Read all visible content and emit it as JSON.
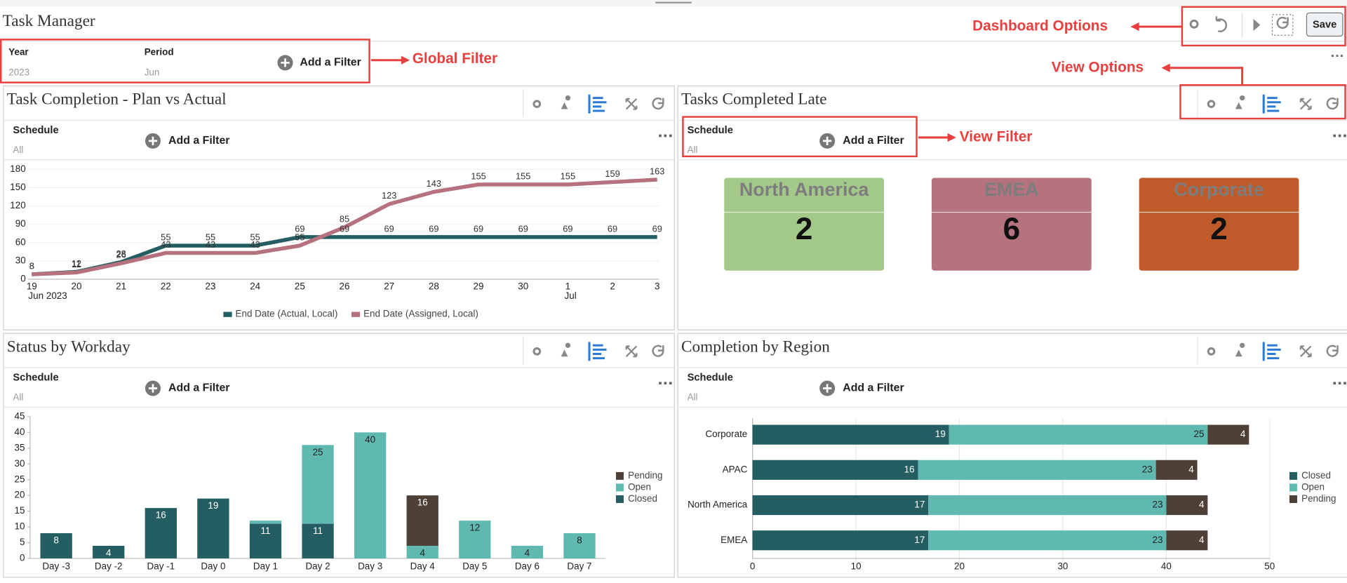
{
  "header": {
    "title": "Task Manager",
    "save": "Save"
  },
  "global_filter": {
    "fields": [
      {
        "label": "Year",
        "value": "2023"
      },
      {
        "label": "Period",
        "value": "Jun"
      }
    ],
    "add_filter": "Add a Filter"
  },
  "annotations": {
    "dashboard_options": "Dashboard Options",
    "global_filter": "Global Filter",
    "view_options": "View Options",
    "view_filter": "View Filter"
  },
  "panels": [
    {
      "filter_label": "Schedule",
      "filter_value": "All",
      "add_filter": "Add a Filter"
    },
    {
      "filter_label": "Schedule",
      "filter_value": "All",
      "add_filter": "Add a Filter"
    },
    {
      "filter_label": "Schedule",
      "filter_value": "All",
      "add_filter": "Add a Filter"
    },
    {
      "filter_label": "Schedule",
      "filter_value": "All",
      "add_filter": "Add a Filter"
    }
  ],
  "chart_data": [
    {
      "type": "line",
      "title": "Task Completion - Plan vs Actual",
      "categories": [
        "19",
        "20",
        "21",
        "22",
        "23",
        "24",
        "25",
        "26",
        "27",
        "28",
        "29",
        "30",
        "1",
        "2",
        "3"
      ],
      "category_groups": [
        "Jun 2023",
        null,
        null,
        null,
        null,
        null,
        null,
        null,
        null,
        null,
        null,
        null,
        "Jul",
        null,
        null
      ],
      "series": [
        {
          "name": "End Date (Actual, Local)",
          "color": "#245e62",
          "values": [
            8,
            12,
            28,
            55,
            55,
            55,
            69,
            69,
            69,
            69,
            69,
            69,
            69,
            69,
            69
          ]
        },
        {
          "name": "End Date (Assigned, Local)",
          "color": "#b5727e",
          "values": [
            8,
            11,
            26,
            43,
            43,
            43,
            55,
            85,
            123,
            143,
            155,
            155,
            155,
            159,
            163
          ]
        }
      ],
      "ylim": [
        0,
        180
      ],
      "yticks": [
        0,
        30,
        60,
        90,
        120,
        150,
        180
      ],
      "grid": true,
      "legend": "bottom"
    },
    {
      "type": "tiles",
      "title": "Tasks Completed Late",
      "categories": [
        "North America",
        "EMEA",
        "Corporate"
      ],
      "values": [
        2,
        6,
        2
      ],
      "colors": [
        "#a3c98a",
        "#b57380",
        "#bf5b2a"
      ]
    },
    {
      "type": "stacked_bar",
      "title": "Status by Workday",
      "categories": [
        "Day -3",
        "Day -2",
        "Day -1",
        "Day 0",
        "Day 1",
        "Day 2",
        "Day 3",
        "Day 4",
        "Day 5",
        "Day 6",
        "Day 7"
      ],
      "series": [
        {
          "name": "Closed",
          "color": "#245e62",
          "values": [
            8,
            4,
            16,
            19,
            11,
            11,
            null,
            null,
            null,
            null,
            null
          ]
        },
        {
          "name": "Open",
          "color": "#5fb9b1",
          "values": [
            null,
            null,
            null,
            null,
            1,
            25,
            40,
            4,
            12,
            4,
            8
          ]
        },
        {
          "name": "Pending",
          "color": "#4e4037",
          "values": [
            null,
            null,
            null,
            null,
            null,
            null,
            null,
            16,
            null,
            null,
            null
          ]
        }
      ],
      "ylim": [
        0,
        45
      ],
      "yticks": [
        0,
        5,
        10,
        15,
        20,
        25,
        30,
        35,
        40,
        45
      ],
      "grid": false,
      "legend": "right"
    },
    {
      "type": "stacked_barh",
      "title": "Completion by Region",
      "categories": [
        "Corporate",
        "APAC",
        "North America",
        "EMEA"
      ],
      "series": [
        {
          "name": "Closed",
          "color": "#245e62",
          "values": [
            19,
            16,
            17,
            17
          ]
        },
        {
          "name": "Open",
          "color": "#5fb9b1",
          "values": [
            25,
            23,
            23,
            23
          ]
        },
        {
          "name": "Pending",
          "color": "#4e4037",
          "values": [
            4,
            4,
            4,
            4
          ]
        }
      ],
      "xlim": [
        0,
        50
      ],
      "xticks": [
        0,
        10,
        20,
        30,
        40,
        50
      ],
      "grid": true,
      "legend": "right"
    }
  ]
}
